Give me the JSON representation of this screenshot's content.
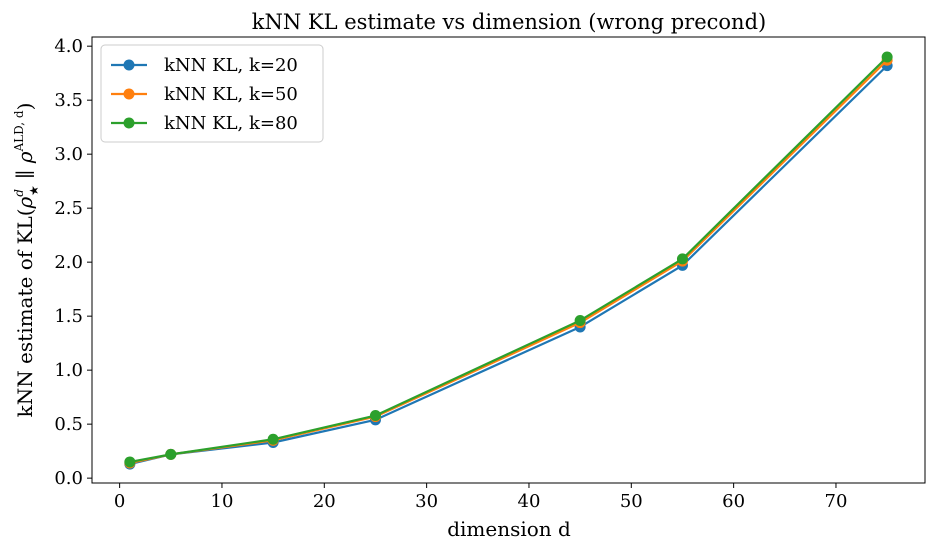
{
  "chart_data": {
    "type": "line",
    "title": "kNN KL estimate vs dimension (wrong precond)",
    "xlabel": "dimension d",
    "ylabel": {
      "main": "kNN estimate of KL(",
      "rho": "ρ",
      "rho_sup": "d",
      "rho_sub": "★",
      "sep": " ∥ ",
      "rho2": "ρ",
      "rho2_sup": "ALD, d",
      "close": ")"
    },
    "x": [
      1,
      5,
      15,
      25,
      45,
      55,
      75
    ],
    "xlim": [
      -2.7,
      78.7
    ],
    "ylim": [
      -0.045,
      4.085
    ],
    "xticks": [
      0,
      10,
      20,
      30,
      40,
      50,
      60,
      70
    ],
    "xtick_labels": [
      "0",
      "10",
      "20",
      "30",
      "40",
      "50",
      "60",
      "70"
    ],
    "yticks": [
      0.0,
      0.5,
      1.0,
      1.5,
      2.0,
      2.5,
      3.0,
      3.5,
      4.0
    ],
    "ytick_labels": [
      "0.0",
      "0.5",
      "1.0",
      "1.5",
      "2.0",
      "2.5",
      "3.0",
      "3.5",
      "4.0"
    ],
    "grid": false,
    "legend_position": "top-left",
    "series": [
      {
        "name": "kNN KL, k=20",
        "color": "#1f77b4",
        "values": [
          0.13,
          0.22,
          0.33,
          0.54,
          1.4,
          1.97,
          3.82
        ]
      },
      {
        "name": "kNN KL, k=50",
        "color": "#ff7f0e",
        "values": [
          0.14,
          0.22,
          0.35,
          0.57,
          1.44,
          2.01,
          3.87
        ]
      },
      {
        "name": "kNN KL, k=80",
        "color": "#2ca02c",
        "values": [
          0.15,
          0.22,
          0.36,
          0.58,
          1.46,
          2.03,
          3.9
        ]
      }
    ]
  }
}
